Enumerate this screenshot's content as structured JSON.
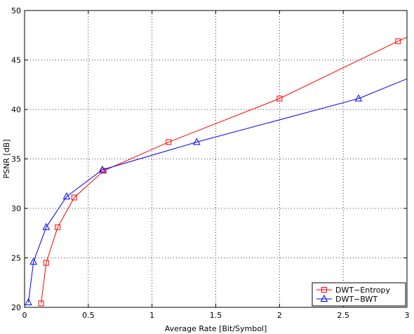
{
  "chart_data": {
    "type": "line",
    "xlabel": "Average Rate [Bit/Symbol]",
    "ylabel": "PSNR [dB]",
    "xlim": [
      0,
      3
    ],
    "ylim": [
      20,
      50
    ],
    "xticks": [
      0,
      0.5,
      1,
      1.5,
      2,
      2.5,
      3
    ],
    "xtick_labels": [
      "0",
      "0.5",
      "1",
      "1.5",
      "2",
      "2.5",
      "3"
    ],
    "yticks": [
      20,
      25,
      30,
      35,
      40,
      45,
      50
    ],
    "ytick_labels": [
      "20",
      "25",
      "30",
      "35",
      "40",
      "45",
      "50"
    ],
    "grid": true,
    "legend_position": "bottom-right",
    "series": [
      {
        "name": "DWT−Entropy",
        "color": "#ff0000",
        "marker": "square",
        "x": [
          0.13,
          0.17,
          0.26,
          0.39,
          0.62,
          1.13,
          2.0,
          2.93,
          3.0
        ],
        "y": [
          20.4,
          24.5,
          28.1,
          31.1,
          33.8,
          36.7,
          41.1,
          46.9,
          47.3
        ]
      },
      {
        "name": "DWT−BWT",
        "color": "#0000ff",
        "marker": "triangle",
        "x": [
          0.03,
          0.07,
          0.17,
          0.33,
          0.61,
          1.35,
          2.62,
          3.0
        ],
        "y": [
          20.5,
          24.6,
          28.1,
          31.2,
          33.9,
          36.7,
          41.1,
          43.1
        ]
      }
    ],
    "marker_points": [
      {
        "series": 0,
        "count": 8
      },
      {
        "series": 1,
        "count": 7
      }
    ]
  }
}
